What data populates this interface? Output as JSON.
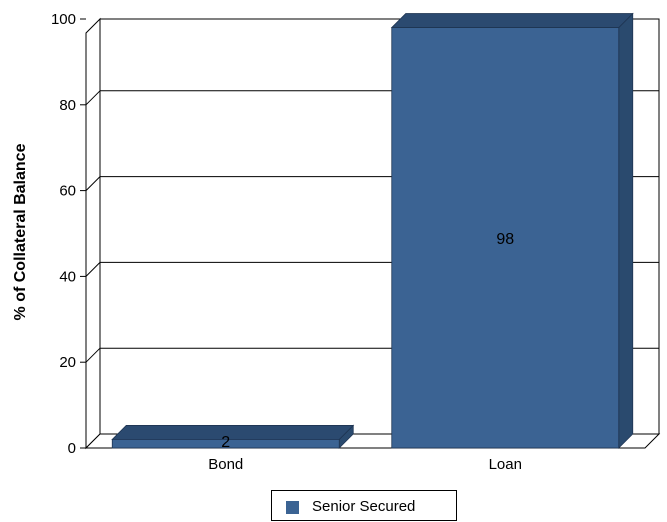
{
  "chart_data": {
    "type": "bar",
    "categories": [
      "Bond",
      "Loan"
    ],
    "series": [
      {
        "name": "Senior Secured",
        "values": [
          2,
          98
        ],
        "color": "#3b6393"
      }
    ],
    "data_labels": [
      "2",
      "98"
    ],
    "ylabel": "% of Collateral Balance",
    "xlabel": "",
    "ylim": [
      0,
      100
    ],
    "yticks": [
      "0",
      "20",
      "40",
      "60",
      "80",
      "100"
    ],
    "grid": true,
    "legend_position": "bottom-center",
    "style": "3d"
  }
}
